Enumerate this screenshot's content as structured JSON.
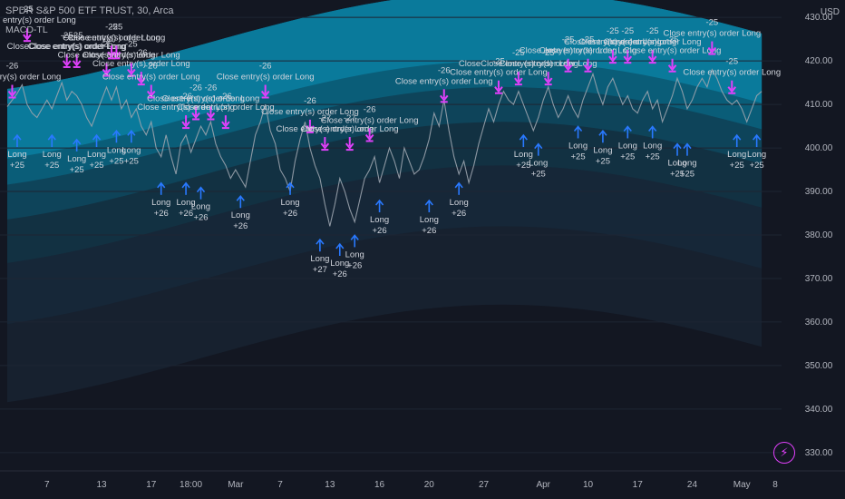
{
  "header": {
    "symbol_line": "SPDR S&P 500 ETF TRUST, 30, Arca",
    "indicator": "MACD-TL",
    "currency": "USD"
  },
  "colors": {
    "background": "#131722",
    "price_line": "#9aa3ad",
    "exit_marker": "#e040fb",
    "entry_marker": "#2979ff",
    "band_top": "#0a7fa0",
    "band_dark": "#16202b"
  },
  "chart_data": {
    "type": "line",
    "title": "",
    "xlabel": "",
    "ylabel": "",
    "ylim": [
      326,
      434
    ],
    "y_ticks": [
      330,
      340,
      350,
      360,
      370,
      380,
      390,
      400,
      410,
      420,
      430
    ],
    "y_tick_labels": [
      "330.00",
      "340.00",
      "350.00",
      "360.00",
      "370.00",
      "380.00",
      "390.00",
      "400.00",
      "410.00",
      "420.00",
      "430.00"
    ],
    "x_range": [
      0,
      152
    ],
    "x_ticks": [
      {
        "x": 8,
        "label": "7"
      },
      {
        "x": 19,
        "label": "13"
      },
      {
        "x": 29,
        "label": "17"
      },
      {
        "x": 37,
        "label": "18:00"
      },
      {
        "x": 46,
        "label": "Mar"
      },
      {
        "x": 55,
        "label": "7"
      },
      {
        "x": 65,
        "label": "13"
      },
      {
        "x": 75,
        "label": "16"
      },
      {
        "x": 85,
        "label": "20"
      },
      {
        "x": 96,
        "label": "27"
      },
      {
        "x": 108,
        "label": "Apr"
      },
      {
        "x": 117,
        "label": "10"
      },
      {
        "x": 127,
        "label": "17"
      },
      {
        "x": 138,
        "label": "24"
      },
      {
        "x": 148,
        "label": "May"
      },
      {
        "x": 158,
        "label": "8"
      }
    ],
    "series": [
      {
        "values": [
          [
            0,
            409.5
          ],
          [
            1,
            411
          ],
          [
            2,
            412.5
          ],
          [
            3,
            414.5
          ],
          [
            4,
            410
          ],
          [
            5,
            408
          ],
          [
            6,
            407
          ],
          [
            7,
            409
          ],
          [
            8,
            411
          ],
          [
            9,
            409
          ],
          [
            10,
            412
          ],
          [
            11,
            415
          ],
          [
            12,
            411
          ],
          [
            13,
            413
          ],
          [
            14,
            412
          ],
          [
            15,
            410
          ],
          [
            16,
            407
          ],
          [
            17,
            405
          ],
          [
            18,
            408
          ],
          [
            19,
            411
          ],
          [
            20,
            414
          ],
          [
            21,
            411
          ],
          [
            22,
            414
          ],
          [
            23,
            409
          ],
          [
            24,
            411
          ],
          [
            25,
            407
          ],
          [
            26,
            409
          ],
          [
            27,
            405
          ],
          [
            28,
            403
          ],
          [
            29,
            406
          ],
          [
            30,
            400
          ],
          [
            31,
            398
          ],
          [
            32,
            403
          ],
          [
            33,
            398
          ],
          [
            34,
            394
          ],
          [
            35,
            401
          ],
          [
            36,
            403
          ],
          [
            37,
            399
          ],
          [
            38,
            402
          ],
          [
            39,
            405
          ],
          [
            40,
            403
          ],
          [
            41,
            406
          ],
          [
            42,
            401
          ],
          [
            43,
            398
          ],
          [
            44,
            396
          ],
          [
            45,
            393
          ],
          [
            46,
            395
          ],
          [
            47,
            393
          ],
          [
            48,
            391
          ],
          [
            49,
            397
          ],
          [
            50,
            403
          ],
          [
            51,
            406
          ],
          [
            52,
            410
          ],
          [
            53,
            404
          ],
          [
            54,
            401
          ],
          [
            55,
            395
          ],
          [
            56,
            393
          ],
          [
            57,
            390
          ],
          [
            58,
            397
          ],
          [
            59,
            402
          ],
          [
            60,
            406
          ],
          [
            61,
            400
          ],
          [
            62,
            396
          ],
          [
            63,
            393
          ],
          [
            64,
            387
          ],
          [
            65,
            382
          ],
          [
            66,
            387
          ],
          [
            67,
            393
          ],
          [
            68,
            390
          ],
          [
            69,
            386
          ],
          [
            70,
            383
          ],
          [
            71,
            388
          ],
          [
            72,
            393
          ],
          [
            73,
            395
          ],
          [
            74,
            398
          ],
          [
            75,
            392
          ],
          [
            76,
            396
          ],
          [
            77,
            400
          ],
          [
            78,
            397
          ],
          [
            79,
            393
          ],
          [
            80,
            400
          ],
          [
            81,
            397
          ],
          [
            82,
            394
          ],
          [
            83,
            395
          ],
          [
            84,
            398
          ],
          [
            85,
            402
          ],
          [
            86,
            408
          ],
          [
            87,
            405
          ],
          [
            88,
            411
          ],
          [
            89,
            404
          ],
          [
            90,
            398
          ],
          [
            91,
            394
          ],
          [
            92,
            397
          ],
          [
            93,
            392
          ],
          [
            94,
            396
          ],
          [
            95,
            401
          ],
          [
            96,
            405
          ],
          [
            97,
            409
          ],
          [
            98,
            406
          ],
          [
            99,
            410
          ],
          [
            100,
            413
          ],
          [
            101,
            411
          ],
          [
            102,
            410
          ],
          [
            103,
            413
          ],
          [
            104,
            410
          ],
          [
            105,
            407
          ],
          [
            106,
            404
          ],
          [
            107,
            407
          ],
          [
            108,
            411
          ],
          [
            109,
            414
          ],
          [
            110,
            410
          ],
          [
            111,
            407
          ],
          [
            112,
            409
          ],
          [
            113,
            412
          ],
          [
            114,
            409
          ],
          [
            115,
            407
          ],
          [
            116,
            411
          ],
          [
            117,
            414
          ],
          [
            118,
            417
          ],
          [
            119,
            413
          ],
          [
            120,
            410
          ],
          [
            121,
            414
          ],
          [
            122,
            416
          ],
          [
            123,
            413
          ],
          [
            124,
            410
          ],
          [
            125,
            412
          ],
          [
            126,
            409
          ],
          [
            127,
            408
          ],
          [
            128,
            411
          ],
          [
            129,
            413
          ],
          [
            130,
            409
          ],
          [
            131,
            411
          ],
          [
            132,
            406
          ],
          [
            133,
            409
          ],
          [
            134,
            412
          ],
          [
            135,
            416
          ],
          [
            136,
            413
          ],
          [
            137,
            409
          ],
          [
            138,
            411
          ],
          [
            139,
            414
          ],
          [
            140,
            416
          ],
          [
            141,
            414
          ],
          [
            142,
            418
          ],
          [
            143,
            416
          ],
          [
            144,
            413
          ],
          [
            145,
            411
          ],
          [
            146,
            410
          ],
          [
            147,
            411
          ],
          [
            148,
            409
          ],
          [
            149,
            406
          ],
          [
            150,
            409
          ],
          [
            151,
            412
          ],
          [
            152,
            413
          ]
        ]
      }
    ],
    "exit_markers": [
      {
        "x": 1,
        "y": 412,
        "qty": "-26",
        "text": "Close entry(s) order Long"
      },
      {
        "x": 4,
        "y": 425,
        "qty": "-25",
        "text": "Close entry(s) order Long"
      },
      {
        "x": 12,
        "y": 419,
        "qty": "-25",
        "text": "CloseClose entry(s) order Long"
      },
      {
        "x": 14,
        "y": 419,
        "qty": "-25",
        "text": "Close entry(s) order Long"
      },
      {
        "x": 20,
        "y": 417,
        "qty": "-25",
        "text": "Close entry(s) order Long"
      },
      {
        "x": 21,
        "y": 421,
        "qty": "-25",
        "text": "Close entry(s) order Long"
      },
      {
        "x": 22,
        "y": 421,
        "qty": "-25",
        "text": "Close entry(s) order Long"
      },
      {
        "x": 25,
        "y": 417,
        "qty": "-25",
        "text": "Close entry(s) order Long"
      },
      {
        "x": 27,
        "y": 415,
        "qty": "-26",
        "text": "Close entry(s) order Long"
      },
      {
        "x": 29,
        "y": 412,
        "qty": "-26",
        "text": "Close entry(s) order Long"
      },
      {
        "x": 36,
        "y": 405,
        "qty": "-26",
        "text": "Close entry(s) order Long"
      },
      {
        "x": 38,
        "y": 407,
        "qty": "-26",
        "text": "Close entry(s) order Long"
      },
      {
        "x": 41,
        "y": 407,
        "qty": "-26",
        "text": "Close entry(s) order Long"
      },
      {
        "x": 44,
        "y": 405,
        "qty": "-26",
        "text": "Close entry(s) order Long"
      },
      {
        "x": 52,
        "y": 412,
        "qty": "-26",
        "text": "Close entry(s) order Long"
      },
      {
        "x": 61,
        "y": 404,
        "qty": "-26",
        "text": "Close entry(s) order Long"
      },
      {
        "x": 64,
        "y": 400,
        "qty": "-27",
        "text": "Close entry(s) order Long"
      },
      {
        "x": 69,
        "y": 400,
        "qty": "-27",
        "text": "Close entry(s) order Long"
      },
      {
        "x": 73,
        "y": 402,
        "qty": "-26",
        "text": "Close entry(s) order Long"
      },
      {
        "x": 88,
        "y": 411,
        "qty": "-26",
        "text": "Close entry(s) order Long"
      },
      {
        "x": 99,
        "y": 413,
        "qty": "-25",
        "text": "Close entry(s) order Long"
      },
      {
        "x": 103,
        "y": 415,
        "qty": "-25",
        "text": "CloseClose entry(s) order Long"
      },
      {
        "x": 109,
        "y": 415,
        "qty": "-25",
        "text": "Close entry(s) order Long"
      },
      {
        "x": 113,
        "y": 418,
        "qty": "-25",
        "text": "Close entry(s) order Long"
      },
      {
        "x": 117,
        "y": 418,
        "qty": "-25",
        "text": "Close entry(s) order Long"
      },
      {
        "x": 122,
        "y": 420,
        "qty": "-25",
        "text": "Close entry(s) order Long"
      },
      {
        "x": 125,
        "y": 420,
        "qty": "-25",
        "text": "Close entry(s) order Long"
      },
      {
        "x": 130,
        "y": 420,
        "qty": "-25",
        "text": "Close entry(s) order Long"
      },
      {
        "x": 134,
        "y": 418,
        "qty": "-25",
        "text": "Close entry(s) order Long"
      },
      {
        "x": 142,
        "y": 422,
        "qty": "-25",
        "text": "Close entry(s) order Long"
      },
      {
        "x": 146,
        "y": 413,
        "qty": "-25",
        "text": "Close entry(s) order Long"
      }
    ],
    "entry_markers": [
      {
        "x": 2,
        "y": 400,
        "qty": "+25",
        "text": "Long"
      },
      {
        "x": 9,
        "y": 400,
        "qty": "+25",
        "text": "Long"
      },
      {
        "x": 14,
        "y": 399,
        "qty": "+25",
        "text": "Long"
      },
      {
        "x": 18,
        "y": 400,
        "qty": "+25",
        "text": "Long"
      },
      {
        "x": 22,
        "y": 401,
        "qty": "+25",
        "text": "Long"
      },
      {
        "x": 25,
        "y": 401,
        "qty": "+25",
        "text": "Long"
      },
      {
        "x": 31,
        "y": 389,
        "qty": "+26",
        "text": "Long"
      },
      {
        "x": 36,
        "y": 389,
        "qty": "+26",
        "text": "Long"
      },
      {
        "x": 39,
        "y": 388,
        "qty": "+26",
        "text": "Long"
      },
      {
        "x": 47,
        "y": 386,
        "qty": "+26",
        "text": "Long"
      },
      {
        "x": 57,
        "y": 389,
        "qty": "+26",
        "text": "Long"
      },
      {
        "x": 63,
        "y": 376,
        "qty": "+27",
        "text": "Long"
      },
      {
        "x": 67,
        "y": 375,
        "qty": "+26",
        "text": "Long"
      },
      {
        "x": 70,
        "y": 377,
        "qty": "+26",
        "text": "Long"
      },
      {
        "x": 75,
        "y": 385,
        "qty": "+26",
        "text": "Long"
      },
      {
        "x": 85,
        "y": 385,
        "qty": "+26",
        "text": "Long"
      },
      {
        "x": 91,
        "y": 389,
        "qty": "+26",
        "text": "Long"
      },
      {
        "x": 104,
        "y": 400,
        "qty": "+25",
        "text": "Long"
      },
      {
        "x": 107,
        "y": 398,
        "qty": "+25",
        "text": "Long"
      },
      {
        "x": 115,
        "y": 402,
        "qty": "+25",
        "text": "Long"
      },
      {
        "x": 120,
        "y": 401,
        "qty": "+25",
        "text": "Long"
      },
      {
        "x": 125,
        "y": 402,
        "qty": "+25",
        "text": "Long"
      },
      {
        "x": 130,
        "y": 402,
        "qty": "+25",
        "text": "Long"
      },
      {
        "x": 135,
        "y": 398,
        "qty": "+25",
        "text": "Long"
      },
      {
        "x": 137,
        "y": 398,
        "qty": "+25",
        "text": "Long"
      },
      {
        "x": 147,
        "y": 400,
        "qty": "+25",
        "text": "Long"
      },
      {
        "x": 151,
        "y": 400,
        "qty": "+25",
        "text": "Long"
      }
    ]
  }
}
